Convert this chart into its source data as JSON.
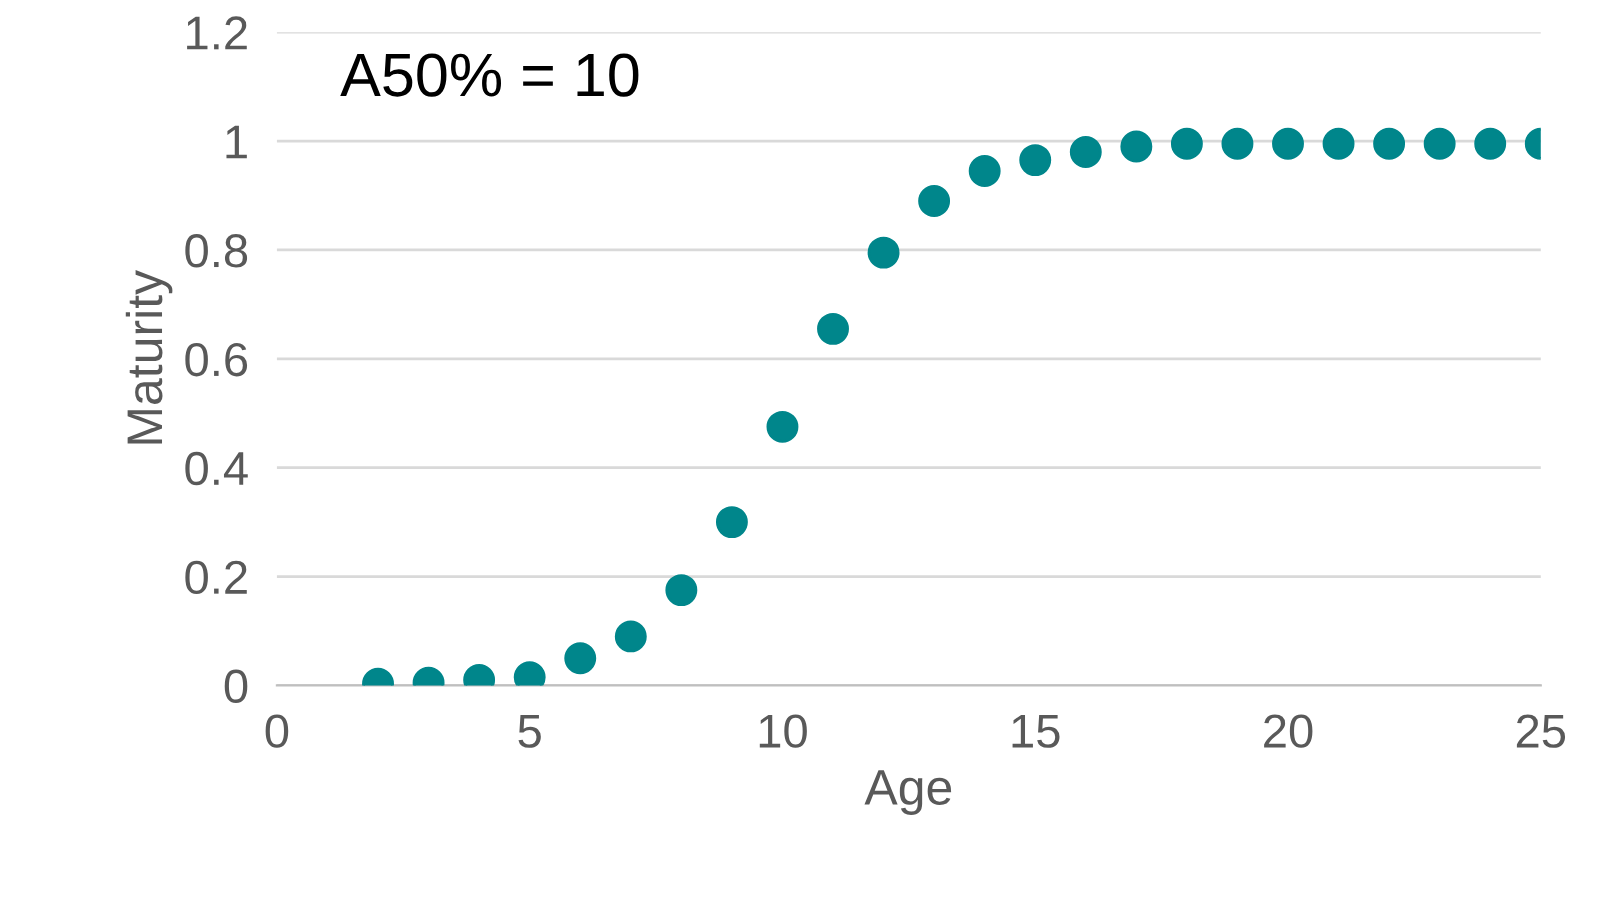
{
  "chart_data": {
    "type": "scatter",
    "xlabel": "Age",
    "ylabel": "Maturity",
    "annotations": [
      "A50% = 10"
    ],
    "x": [
      2,
      3,
      4,
      5,
      6,
      7,
      8,
      9,
      10,
      11,
      12,
      13,
      14,
      15,
      16,
      17,
      18,
      19,
      20,
      21,
      22,
      23,
      24,
      25
    ],
    "series": [
      {
        "color": "#00868b",
        "values": [
          0.003,
          0.005,
          0.01,
          0.015,
          0.05,
          0.09,
          0.175,
          0.3,
          0.475,
          0.655,
          0.795,
          0.89,
          0.945,
          0.965,
          0.98,
          0.99,
          0.995,
          0.995,
          0.995,
          0.995,
          0.995,
          0.995,
          0.995,
          0.995
        ]
      }
    ],
    "xlim": [
      0,
      25
    ],
    "xticks": [
      0,
      5,
      10,
      15,
      20,
      25
    ],
    "ylim": [
      0,
      1.2
    ],
    "yticks": [
      0,
      0.2,
      0.4,
      0.6,
      0.8,
      1,
      1.2
    ],
    "grid": "y",
    "marker": "circle",
    "legend": false
  }
}
